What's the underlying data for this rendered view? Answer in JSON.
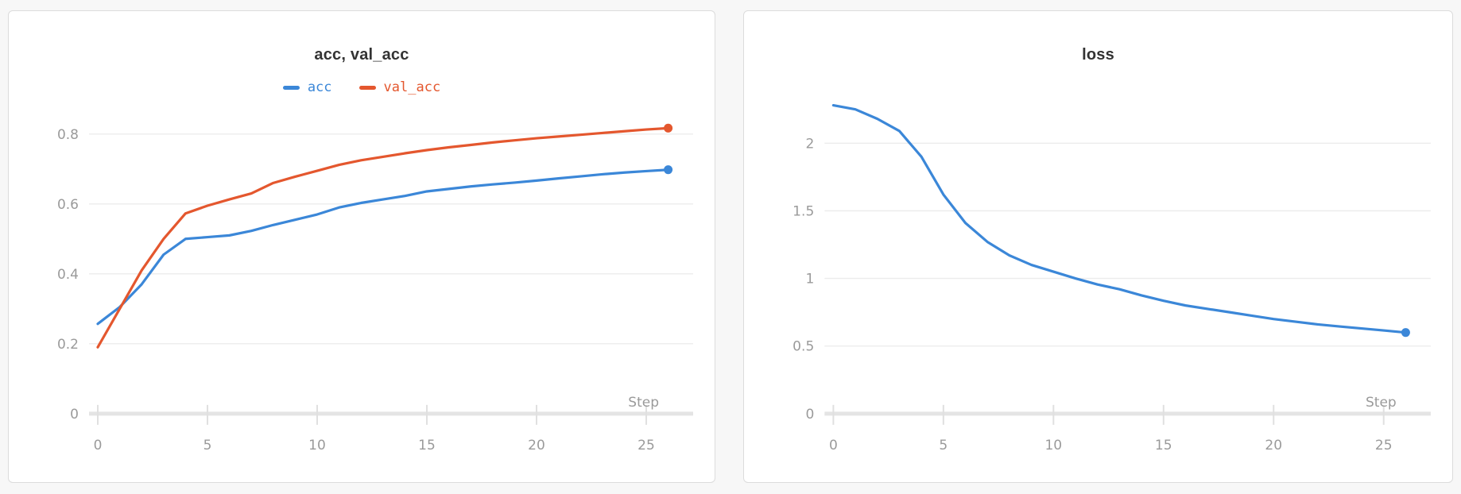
{
  "theme": {
    "card_background": "#ffffff",
    "page_background": "#f7f7f7",
    "card_border": "#dcdcdc",
    "title_color": "#333333",
    "gridline_color": "#ececec",
    "axis_bar_color": "#e4e4e4",
    "tick_mark_color": "#e0e0e0",
    "tick_label_color": "#9a9a9a"
  },
  "chart_data": [
    {
      "type": "line",
      "title": "acc, val_acc",
      "xlabel": "Step",
      "grid": true,
      "legend_position": "top-center",
      "xlim": [
        0,
        26.5
      ],
      "ylim": [
        0,
        0.89
      ],
      "xticks": [
        0,
        5,
        10,
        15,
        20,
        25
      ],
      "yticks": [
        0,
        0.2,
        0.4,
        0.6,
        0.8
      ],
      "x": [
        0,
        1,
        2,
        3,
        4,
        5,
        6,
        7,
        8,
        9,
        10,
        11,
        12,
        13,
        14,
        15,
        16,
        17,
        18,
        19,
        20,
        21,
        22,
        23,
        24,
        25,
        26
      ],
      "series": [
        {
          "name": "acc",
          "color": "#3b87d8",
          "endpoint_marker": true,
          "values": [
            0.257,
            0.305,
            0.37,
            0.455,
            0.5,
            0.505,
            0.51,
            0.523,
            0.54,
            0.555,
            0.57,
            0.59,
            0.603,
            0.613,
            0.623,
            0.636,
            0.643,
            0.65,
            0.656,
            0.661,
            0.667,
            0.673,
            0.679,
            0.685,
            0.69,
            0.694,
            0.698
          ]
        },
        {
          "name": "val_acc",
          "color": "#e4572e",
          "endpoint_marker": true,
          "values": [
            0.19,
            0.3,
            0.41,
            0.5,
            0.573,
            0.595,
            0.613,
            0.63,
            0.66,
            0.678,
            0.695,
            0.712,
            0.725,
            0.735,
            0.745,
            0.754,
            0.762,
            0.769,
            0.776,
            0.782,
            0.788,
            0.793,
            0.798,
            0.803,
            0.808,
            0.813,
            0.817
          ]
        }
      ]
    },
    {
      "type": "line",
      "title": "loss",
      "xlabel": "Step",
      "grid": true,
      "legend_position": "none",
      "xlim": [
        0,
        26.5
      ],
      "ylim": [
        0,
        2.3
      ],
      "xticks": [
        0,
        5,
        10,
        15,
        20,
        25
      ],
      "yticks": [
        0,
        0.5,
        1,
        1.5,
        2
      ],
      "x": [
        0,
        1,
        2,
        3,
        4,
        5,
        6,
        7,
        8,
        9,
        10,
        11,
        12,
        13,
        14,
        15,
        16,
        17,
        18,
        19,
        20,
        21,
        22,
        23,
        24,
        25,
        26
      ],
      "series": [
        {
          "name": "loss",
          "color": "#3b87d8",
          "endpoint_marker": true,
          "values": [
            2.28,
            2.25,
            2.18,
            2.09,
            1.9,
            1.62,
            1.41,
            1.27,
            1.17,
            1.1,
            1.05,
            1.0,
            0.955,
            0.92,
            0.875,
            0.835,
            0.8,
            0.775,
            0.75,
            0.725,
            0.7,
            0.68,
            0.66,
            0.645,
            0.63,
            0.615,
            0.6
          ]
        }
      ]
    }
  ]
}
